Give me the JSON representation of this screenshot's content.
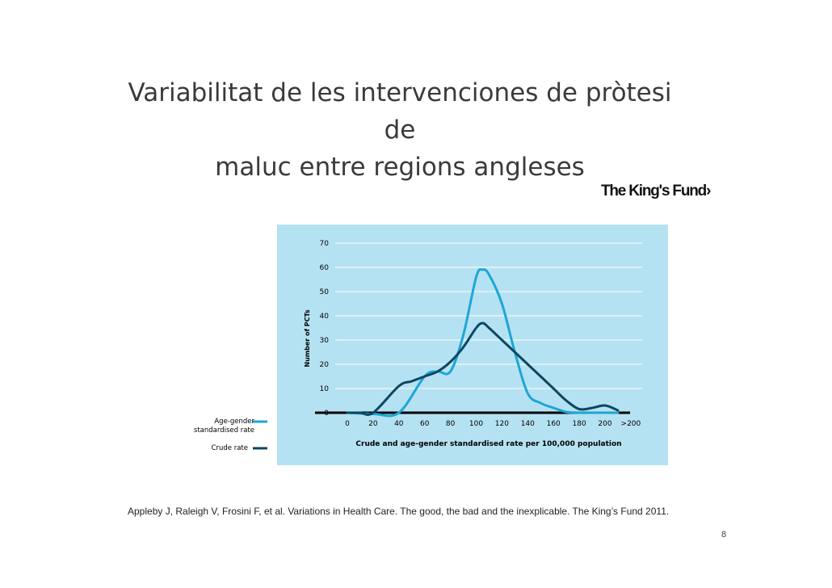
{
  "slide": {
    "title_line1": "Variabilitat de les intervenciones de pròtesi de",
    "title_line2": "maluc entre regions angleses",
    "logo_text": "The King's Fund",
    "logo_arrow": "›",
    "citation": "Appleby J, Raleigh V, Frosini F, et al. Variations in Health Care. The good, the bad and the inexplicable. The King’s Fund 2011.",
    "page_number": "8"
  },
  "colors": {
    "background": "#b5e2f2",
    "age_gender_series": "#1da6d6",
    "crude_series": "#0d4661",
    "grid": "#ffffff",
    "axis": "#000000"
  },
  "chart_data": {
    "type": "line",
    "title": "",
    "xlabel": "Crude and age-gender standardised rate per 100,000 population",
    "ylabel": "Number of PCTs",
    "x_ticks": [
      "0",
      "20",
      "40",
      "60",
      "80",
      "100",
      "120",
      "140",
      "160",
      "180",
      "200",
      ">200"
    ],
    "y_ticks": [
      "0",
      "10",
      "20",
      "30",
      "40",
      "50",
      "60",
      "70"
    ],
    "ylim": [
      0,
      70
    ],
    "grid": true,
    "legend_position": "bottom-left",
    "series": [
      {
        "name": "Age-gender standardised rate",
        "color": "#1da6d6",
        "x": [
          0,
          20,
          40,
          60,
          70,
          80,
          90,
          100,
          105,
          110,
          120,
          130,
          140,
          150,
          160,
          170,
          180,
          190,
          200,
          210
        ],
        "values": [
          0,
          -0.5,
          0,
          15,
          17,
          17,
          32,
          56,
          59,
          57,
          45,
          25,
          8,
          4,
          2,
          0.3,
          0,
          0,
          0,
          0
        ]
      },
      {
        "name": "Crude rate",
        "color": "#0d4661",
        "x": [
          0,
          10,
          20,
          40,
          50,
          60,
          70,
          80,
          90,
          100,
          105,
          110,
          120,
          130,
          140,
          150,
          160,
          170,
          180,
          190,
          200,
          210
        ],
        "values": [
          0,
          0,
          0,
          11,
          13,
          15,
          17,
          21,
          27,
          35,
          37,
          35,
          30,
          25,
          20,
          15,
          10,
          5,
          1.5,
          2,
          3,
          1
        ]
      }
    ]
  }
}
